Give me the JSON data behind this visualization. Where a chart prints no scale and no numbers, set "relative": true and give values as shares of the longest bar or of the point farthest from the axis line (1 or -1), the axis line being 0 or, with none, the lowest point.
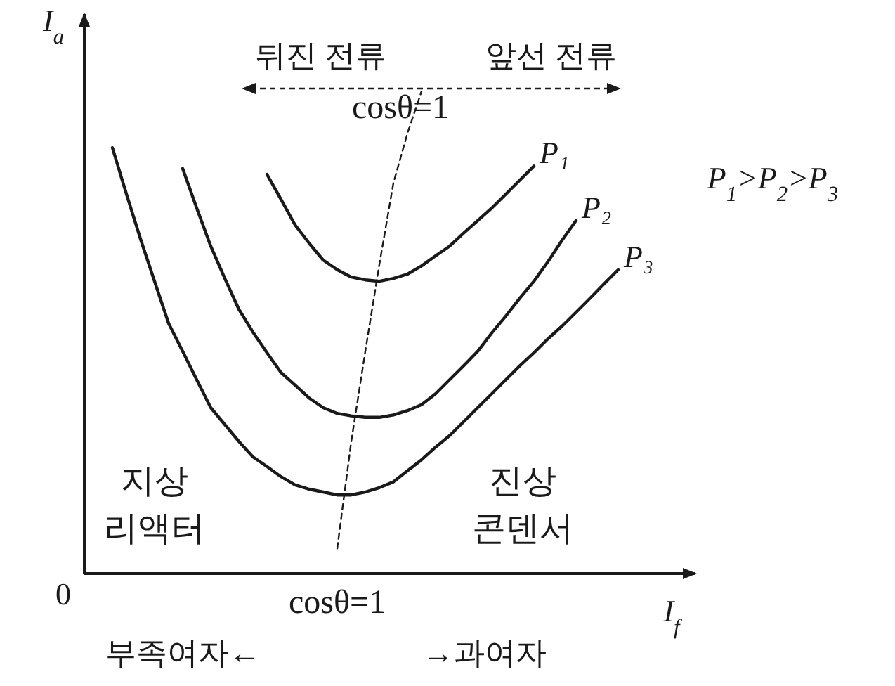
{
  "chart_data": {
    "type": "line",
    "relative": true,
    "xlabel": "I$_{f}$",
    "ylabel": "I$_{a}$",
    "categories": [
      null,
      null,
      null,
      null,
      null,
      null,
      null,
      null,
      null,
      null,
      null,
      null,
      null,
      null,
      null,
      null,
      null,
      null,
      null,
      null,
      null,
      null,
      null,
      null,
      null,
      null,
      null,
      null,
      null,
      null,
      null,
      null,
      null,
      null,
      null,
      null,
      null,
      null
    ],
    "series": [
      {
        "name": "P₁",
        "color": "#1a1a1a",
        "values": [
          null,
          null,
          null,
          null,
          null,
          null,
          null,
          null,
          null,
          null,
          null,
          null,
          0.828,
          0.776,
          0.723,
          0.685,
          0.65,
          0.63,
          0.615,
          0.609,
          0.606,
          0.612,
          0.621,
          0.638,
          0.659,
          0.679,
          0.706,
          0.732,
          0.758,
          0.787,
          0.816,
          0.845,
          null,
          null,
          null,
          null,
          null,
          null
        ]
      },
      {
        "name": "P₂",
        "color": "#1a1a1a",
        "values": [
          null,
          null,
          null,
          null,
          null,
          null,
          0.84,
          0.758,
          0.679,
          0.612,
          0.548,
          0.501,
          0.458,
          0.417,
          0.391,
          0.364,
          0.344,
          0.332,
          0.327,
          0.324,
          0.324,
          0.329,
          0.338,
          0.35,
          0.373,
          0.402,
          0.431,
          0.461,
          0.499,
          0.534,
          0.571,
          0.606,
          0.647,
          0.691,
          0.732,
          null,
          null,
          null
        ]
      },
      {
        "name": "P₃",
        "color": "#1a1a1a",
        "values": [
          null,
          0.883,
          0.787,
          0.694,
          0.606,
          0.519,
          0.461,
          0.402,
          0.344,
          0.309,
          0.274,
          0.242,
          0.222,
          0.201,
          0.184,
          0.175,
          0.169,
          0.163,
          0.163,
          0.169,
          0.178,
          0.19,
          0.213,
          0.236,
          0.262,
          0.286,
          0.315,
          0.344,
          0.373,
          0.402,
          0.431,
          0.458,
          0.487,
          0.513,
          0.542,
          0.571,
          0.601,
          0.63
        ]
      },
      {
        "type": "line",
        "line_style": "dashed",
        "color": "#1a1a1a",
        "values": [
          null,
          null,
          null,
          null,
          null,
          null,
          null,
          null,
          null,
          null,
          null,
          null,
          null,
          null,
          null,
          null,
          null,
          0.052,
          0.274,
          0.461,
          0.641,
          0.81,
          0.913,
          1.0,
          null,
          null,
          null,
          null,
          null,
          null,
          null,
          null,
          null,
          null,
          null,
          null,
          null,
          null
        ]
      }
    ],
    "annotations": [
      "뒤진 전류",
      "앞선 전류",
      "cosθ=1",
      "P$_{1}$>P$_{2}$>P$_{3}$",
      "지상 리액터",
      "진상 콘덴서",
      "0",
      "cosθ=1",
      "부족여자←",
      "→과여자"
    ]
  }
}
